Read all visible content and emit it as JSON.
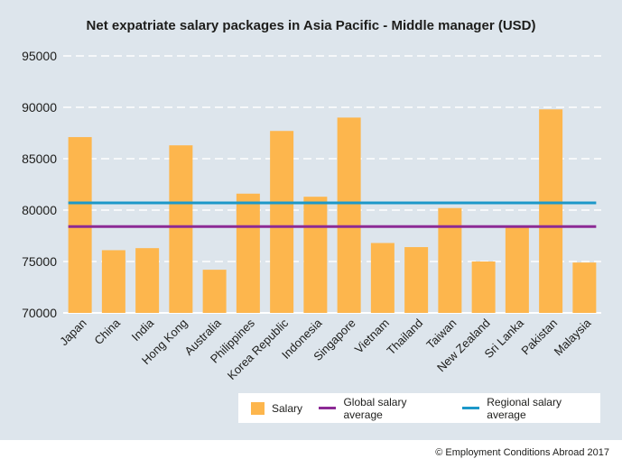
{
  "chart_data": {
    "type": "bar",
    "title": "Net expatriate salary packages in Asia Pacific - Middle manager (USD)",
    "xlabel": "",
    "ylabel": "",
    "ylim": [
      70000,
      95000
    ],
    "yticks": [
      95000,
      90000,
      85000,
      80000,
      75000,
      70000
    ],
    "grid": true,
    "categories": [
      "Japan",
      "China",
      "India",
      "Hong Kong",
      "Australia",
      "Philippines",
      "Korea Republic",
      "Indonesia",
      "Singapore",
      "Vietnam",
      "Thailand",
      "Taiwan",
      "New Zealand",
      "Sri Lanka",
      "Pakistan",
      "Malaysia"
    ],
    "series": [
      {
        "name": "Salary",
        "kind": "bar",
        "values": [
          87100,
          76100,
          76300,
          86300,
          74200,
          81600,
          87700,
          81300,
          89000,
          76800,
          76400,
          80200,
          75000,
          78400,
          89800,
          74900
        ]
      },
      {
        "name": "Global salary average",
        "kind": "line",
        "values": [
          78400,
          78400,
          78400,
          78400,
          78400,
          78400,
          78400,
          78400,
          78400,
          78400,
          78400,
          78400,
          78400,
          78400,
          78400,
          78400
        ]
      },
      {
        "name": "Regional salary average",
        "kind": "line",
        "values": [
          80700,
          80700,
          80700,
          80700,
          80700,
          80700,
          80700,
          80700,
          80700,
          80700,
          80700,
          80700,
          80700,
          80700,
          80700,
          80700
        ]
      }
    ],
    "legend_position": "bottom-right"
  },
  "colors": {
    "bar": "#fdb64d",
    "global_avg": "#8c2a95",
    "regional_avg": "#1c98c9",
    "grid": "#ffffff",
    "background": "#dde5ec"
  },
  "legend": {
    "salary": "Salary",
    "global": "Global salary average",
    "regional": "Regional salary average"
  },
  "footer": {
    "credit": "© Employment Conditions Abroad 2017"
  }
}
